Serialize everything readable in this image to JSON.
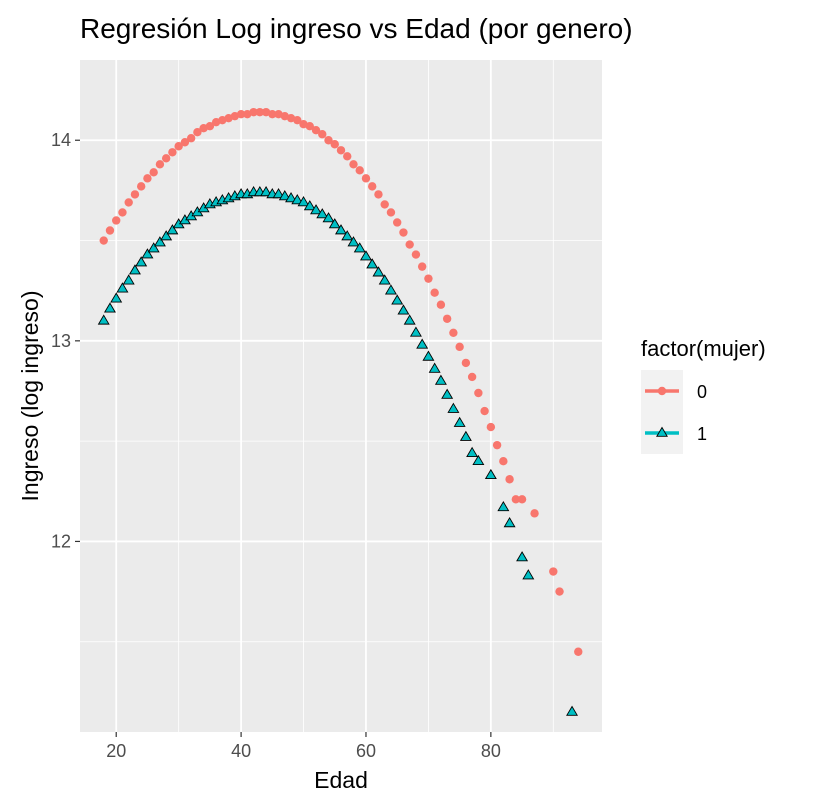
{
  "chart_data": {
    "type": "scatter",
    "title": "Regresión Log ingreso vs Edad (por genero)",
    "xlabel": "Edad",
    "ylabel": "Ingreso (log ingreso)",
    "xlim": [
      14.2,
      97.8
    ],
    "ylim": [
      11.05,
      14.4
    ],
    "x_ticks": [
      20,
      40,
      60,
      80
    ],
    "x_tick_labels": [
      "20",
      "40",
      "60",
      "80"
    ],
    "y_ticks": [
      12,
      13,
      14
    ],
    "y_tick_labels": [
      "12",
      "13",
      "14"
    ],
    "grid": true,
    "legend": {
      "title": "factor(mujer)",
      "position": "right"
    },
    "series": [
      {
        "name": "0",
        "color": "#F8766D",
        "marker": "circle",
        "points": [
          [
            18,
            13.5
          ],
          [
            19,
            13.55
          ],
          [
            20,
            13.6
          ],
          [
            21,
            13.64
          ],
          [
            22,
            13.69
          ],
          [
            23,
            13.73
          ],
          [
            24,
            13.77
          ],
          [
            25,
            13.81
          ],
          [
            26,
            13.84
          ],
          [
            27,
            13.88
          ],
          [
            28,
            13.91
          ],
          [
            29,
            13.94
          ],
          [
            30,
            13.97
          ],
          [
            31,
            13.99
          ],
          [
            32,
            14.01
          ],
          [
            33,
            14.04
          ],
          [
            34,
            14.06
          ],
          [
            35,
            14.07
          ],
          [
            36,
            14.09
          ],
          [
            37,
            14.1
          ],
          [
            38,
            14.11
          ],
          [
            39,
            14.12
          ],
          [
            40,
            14.13
          ],
          [
            41,
            14.13
          ],
          [
            42,
            14.14
          ],
          [
            43,
            14.14
          ],
          [
            44,
            14.14
          ],
          [
            45,
            14.13
          ],
          [
            46,
            14.13
          ],
          [
            47,
            14.12
          ],
          [
            48,
            14.11
          ],
          [
            49,
            14.1
          ],
          [
            50,
            14.08
          ],
          [
            51,
            14.07
          ],
          [
            52,
            14.05
          ],
          [
            53,
            14.03
          ],
          [
            54,
            14.0
          ],
          [
            55,
            13.98
          ],
          [
            56,
            13.95
          ],
          [
            57,
            13.92
          ],
          [
            58,
            13.88
          ],
          [
            59,
            13.85
          ],
          [
            60,
            13.81
          ],
          [
            61,
            13.77
          ],
          [
            62,
            13.73
          ],
          [
            63,
            13.68
          ],
          [
            64,
            13.64
          ],
          [
            65,
            13.59
          ],
          [
            66,
            13.54
          ],
          [
            67,
            13.48
          ],
          [
            68,
            13.43
          ],
          [
            69,
            13.37
          ],
          [
            70,
            13.31
          ],
          [
            71,
            13.24
          ],
          [
            72,
            13.18
          ],
          [
            73,
            13.11
          ],
          [
            74,
            13.04
          ],
          [
            75,
            12.97
          ],
          [
            76,
            12.89
          ],
          [
            77,
            12.82
          ],
          [
            78,
            12.74
          ],
          [
            79,
            12.65
          ],
          [
            80,
            12.57
          ],
          [
            81,
            12.48
          ],
          [
            82,
            12.4
          ],
          [
            83,
            12.31
          ],
          [
            84,
            12.21
          ],
          [
            85,
            12.21
          ],
          [
            87,
            12.14
          ],
          [
            90,
            11.85
          ],
          [
            91,
            11.75
          ],
          [
            94,
            11.45
          ]
        ]
      },
      {
        "name": "1",
        "color": "#00BFC4",
        "marker": "triangle",
        "points": [
          [
            18,
            13.1
          ],
          [
            19,
            13.16
          ],
          [
            20,
            13.21
          ],
          [
            21,
            13.26
          ],
          [
            22,
            13.3
          ],
          [
            23,
            13.35
          ],
          [
            24,
            13.39
          ],
          [
            25,
            13.43
          ],
          [
            26,
            13.46
          ],
          [
            27,
            13.49
          ],
          [
            28,
            13.52
          ],
          [
            29,
            13.55
          ],
          [
            30,
            13.58
          ],
          [
            31,
            13.6
          ],
          [
            32,
            13.62
          ],
          [
            33,
            13.64
          ],
          [
            34,
            13.66
          ],
          [
            35,
            13.68
          ],
          [
            36,
            13.69
          ],
          [
            37,
            13.7
          ],
          [
            38,
            13.71
          ],
          [
            39,
            13.72
          ],
          [
            40,
            13.73
          ],
          [
            41,
            13.73
          ],
          [
            42,
            13.74
          ],
          [
            43,
            13.74
          ],
          [
            44,
            13.74
          ],
          [
            45,
            13.73
          ],
          [
            46,
            13.73
          ],
          [
            47,
            13.72
          ],
          [
            48,
            13.71
          ],
          [
            49,
            13.7
          ],
          [
            50,
            13.69
          ],
          [
            51,
            13.67
          ],
          [
            52,
            13.65
          ],
          [
            53,
            13.63
          ],
          [
            54,
            13.61
          ],
          [
            55,
            13.58
          ],
          [
            56,
            13.55
          ],
          [
            57,
            13.52
          ],
          [
            58,
            13.49
          ],
          [
            59,
            13.46
          ],
          [
            60,
            13.42
          ],
          [
            61,
            13.38
          ],
          [
            62,
            13.34
          ],
          [
            63,
            13.3
          ],
          [
            64,
            13.25
          ],
          [
            65,
            13.2
          ],
          [
            66,
            13.15
          ],
          [
            67,
            13.1
          ],
          [
            68,
            13.04
          ],
          [
            69,
            12.98
          ],
          [
            70,
            12.92
          ],
          [
            71,
            12.86
          ],
          [
            72,
            12.8
          ],
          [
            73,
            12.73
          ],
          [
            74,
            12.66
          ],
          [
            75,
            12.59
          ],
          [
            76,
            12.52
          ],
          [
            77,
            12.44
          ],
          [
            78,
            12.4
          ],
          [
            80,
            12.33
          ],
          [
            82,
            12.17
          ],
          [
            83,
            12.09
          ],
          [
            85,
            11.92
          ],
          [
            86,
            11.83
          ],
          [
            93,
            11.15
          ]
        ]
      }
    ]
  }
}
